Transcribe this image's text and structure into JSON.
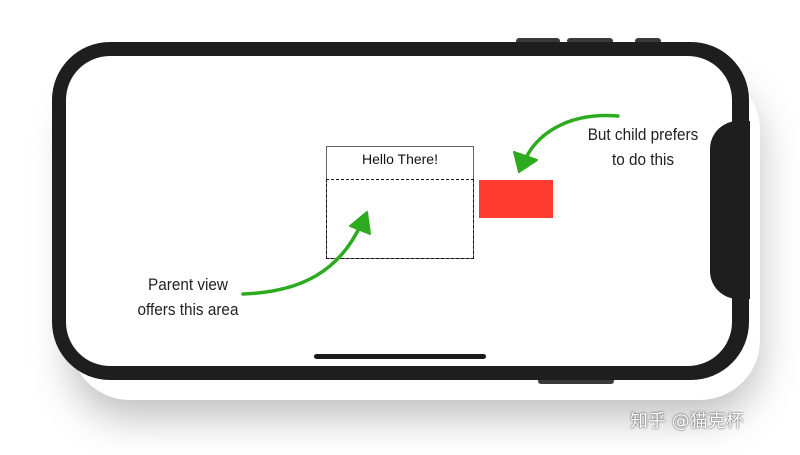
{
  "screen": {
    "hello_label": "Hello There!"
  },
  "annotations": {
    "parent_line1": "Parent view",
    "parent_line2": "offers this area",
    "child_line1": "But child prefers",
    "child_line2": "to do this"
  },
  "colors": {
    "child_view": "#ff3b30",
    "arrow": "#2eaa1f",
    "device": "#1e1e1e"
  },
  "watermark": {
    "text": "知乎 @猫克杯"
  }
}
